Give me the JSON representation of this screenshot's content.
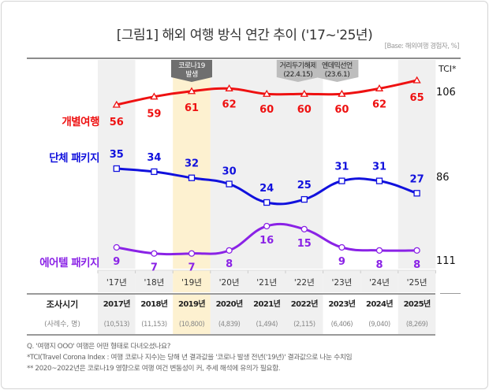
{
  "title": "[그림1] 해외 여행 방식 연간 추이 ('17~'25년)",
  "base_note": "[Base: 해외여행 경험자, %]",
  "tci_header": "TCI*",
  "events": [
    {
      "label_line1": "코로나19",
      "label_line2": "발생",
      "year_index": 2,
      "style": "dark"
    },
    {
      "label_line1": "거리두기해제",
      "label_line2": "(22.4.15)",
      "year_index": 5,
      "style": "light"
    },
    {
      "label_line1": "엔데믹선언",
      "label_line2": "(23.6.1)",
      "year_index": 6,
      "style": "light"
    }
  ],
  "chart_data": {
    "type": "line",
    "title": "[그림1] 해외 여행 방식 연간 추이 ('17~'25년)",
    "xlabel": "",
    "ylabel": "%",
    "categories": [
      "'17년",
      "'18년",
      "'19년",
      "'20년",
      "'21년",
      "'22년",
      "'23년",
      "'24년",
      "'25년"
    ],
    "series": [
      {
        "name": "개별여행",
        "color": "#ee1111",
        "marker": "triangle",
        "values": [
          56,
          59,
          61,
          62,
          60,
          60,
          60,
          62,
          65
        ],
        "tci": "106"
      },
      {
        "name": "단체 패키지",
        "color": "#1111dd",
        "marker": "square",
        "values": [
          35,
          34,
          32,
          30,
          24,
          25,
          31,
          31,
          27
        ],
        "tci": "86"
      },
      {
        "name": "에어텔 패키지",
        "color": "#8a22e6",
        "marker": "circle",
        "values": [
          9,
          7,
          7,
          8,
          16,
          15,
          9,
          8,
          8
        ],
        "tci": "111"
      }
    ],
    "legend": "left",
    "grid": false
  },
  "table": {
    "row1_label": "조사시기",
    "row2_label": "(사례수, 명)",
    "years": [
      "2017년",
      "2018년",
      "2019년",
      "2020년",
      "2021년",
      "2022년",
      "2023년",
      "2024년",
      "2025년"
    ],
    "samples": [
      "(10,513)",
      "(11,153)",
      "(10,800)",
      "(4,839)",
      "(1,494)",
      "(2,115)",
      "(6,406)",
      "(9,040)",
      "(8,269)"
    ]
  },
  "column_shading": [
    "gray",
    "white",
    "yellow",
    "gray",
    "gray",
    "gray",
    "white",
    "white",
    "gray"
  ],
  "colors": {
    "gray": "#f0f0f0",
    "yellow": "#fdf1d0",
    "white": "#ffffff",
    "event_dark": "#6f6f6f",
    "event_light": "#bdbdbd"
  },
  "notes": [
    "Q. '여행지 OOO' 여행은 어떤 형태로 다녀오셨나요?",
    " *TCI(Travel Corona Index : 여행 코로나 지수)는 당해 년 결과값을 '코로나 발생 전년('19년)' 결과값으로 나눈 수치임",
    "** 2020~2022년은 코로나19 영향으로 여행 여건 변동성이 커, 추세 해석에 유의가 필요함."
  ]
}
